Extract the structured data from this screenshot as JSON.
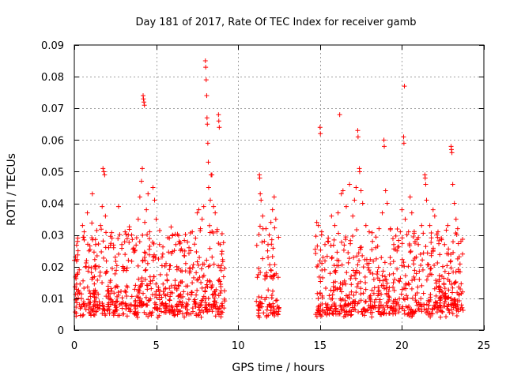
{
  "chart_data": {
    "type": "scatter",
    "title": "Day 181 of 2017, Rate Of TEC Index for receiver gamb",
    "xlabel": "GPS time / hours",
    "ylabel": "ROTI / TECUs",
    "xlim": [
      0,
      25
    ],
    "ylim": [
      0,
      0.09
    ],
    "xticks": [
      0,
      5,
      10,
      15,
      20,
      25
    ],
    "xtick_labels": [
      "0",
      "5",
      "10",
      "15",
      "20",
      "25"
    ],
    "yticks": [
      0,
      0.01,
      0.02,
      0.03,
      0.04,
      0.05,
      0.06,
      0.07,
      0.08,
      0.09
    ],
    "ytick_labels": [
      "0",
      "0.01",
      "0.02",
      "0.03",
      "0.04",
      "0.05",
      "0.06",
      "0.07",
      "0.08",
      "0.09"
    ],
    "grid": true,
    "marker": "+",
    "color": "#ff0000",
    "data_gaps_hours": [
      [
        9.2,
        11.1
      ],
      [
        12.5,
        14.7
      ],
      [
        23.8,
        25
      ]
    ],
    "series": [
      {
        "name": "ROTI",
        "points": [
          [
            0.0,
            0.022
          ],
          [
            0.2,
            0.028
          ],
          [
            0.3,
            0.019
          ],
          [
            0.5,
            0.033
          ],
          [
            0.6,
            0.031
          ],
          [
            0.8,
            0.037
          ],
          [
            0.9,
            0.025
          ],
          [
            1.1,
            0.043
          ],
          [
            1.3,
            0.027
          ],
          [
            1.5,
            0.02
          ],
          [
            1.6,
            0.033
          ],
          [
            1.7,
            0.039
          ],
          [
            1.75,
            0.051
          ],
          [
            1.8,
            0.05
          ],
          [
            1.85,
            0.049
          ],
          [
            1.9,
            0.036
          ],
          [
            2.1,
            0.026
          ],
          [
            2.3,
            0.029
          ],
          [
            2.5,
            0.023
          ],
          [
            2.7,
            0.039
          ],
          [
            2.9,
            0.027
          ],
          [
            3.1,
            0.031
          ],
          [
            3.3,
            0.022
          ],
          [
            3.5,
            0.03
          ],
          [
            3.7,
            0.025
          ],
          [
            3.9,
            0.035
          ],
          [
            4.0,
            0.042
          ],
          [
            4.1,
            0.047
          ],
          [
            4.15,
            0.051
          ],
          [
            4.2,
            0.074
          ],
          [
            4.22,
            0.073
          ],
          [
            4.25,
            0.072
          ],
          [
            4.28,
            0.071
          ],
          [
            4.3,
            0.034
          ],
          [
            4.4,
            0.038
          ],
          [
            4.5,
            0.043
          ],
          [
            4.6,
            0.031
          ],
          [
            4.8,
            0.045
          ],
          [
            4.9,
            0.041
          ],
          [
            5.0,
            0.035
          ],
          [
            5.2,
            0.027
          ],
          [
            5.4,
            0.024
          ],
          [
            5.6,
            0.021
          ],
          [
            5.8,
            0.029
          ],
          [
            6.0,
            0.03
          ],
          [
            6.2,
            0.027
          ],
          [
            6.4,
            0.028
          ],
          [
            6.6,
            0.025
          ],
          [
            6.8,
            0.021
          ],
          [
            7.0,
            0.026
          ],
          [
            7.2,
            0.031
          ],
          [
            7.4,
            0.029
          ],
          [
            7.5,
            0.037
          ],
          [
            7.6,
            0.038
          ],
          [
            7.7,
            0.032
          ],
          [
            7.8,
            0.035
          ],
          [
            7.9,
            0.039
          ],
          [
            8.0,
            0.085
          ],
          [
            8.02,
            0.083
          ],
          [
            8.05,
            0.079
          ],
          [
            8.08,
            0.074
          ],
          [
            8.1,
            0.067
          ],
          [
            8.12,
            0.065
          ],
          [
            8.15,
            0.059
          ],
          [
            8.18,
            0.053
          ],
          [
            8.2,
            0.045
          ],
          [
            8.3,
            0.041
          ],
          [
            8.35,
            0.049
          ],
          [
            8.4,
            0.049
          ],
          [
            8.5,
            0.039
          ],
          [
            8.6,
            0.037
          ],
          [
            8.7,
            0.031
          ],
          [
            8.8,
            0.068
          ],
          [
            8.82,
            0.066
          ],
          [
            8.85,
            0.064
          ],
          [
            8.9,
            0.027
          ],
          [
            9.0,
            0.024
          ],
          [
            11.3,
            0.049
          ],
          [
            11.32,
            0.048
          ],
          [
            11.35,
            0.043
          ],
          [
            11.4,
            0.041
          ],
          [
            11.5,
            0.036
          ],
          [
            11.6,
            0.028
          ],
          [
            11.7,
            0.032
          ],
          [
            11.8,
            0.025
          ],
          [
            11.9,
            0.03
          ],
          [
            12.0,
            0.034
          ],
          [
            12.1,
            0.038
          ],
          [
            12.2,
            0.042
          ],
          [
            12.3,
            0.035
          ],
          [
            14.8,
            0.034
          ],
          [
            14.9,
            0.033
          ],
          [
            15.0,
            0.064
          ],
          [
            15.02,
            0.062
          ],
          [
            15.1,
            0.031
          ],
          [
            15.3,
            0.027
          ],
          [
            15.5,
            0.029
          ],
          [
            15.7,
            0.036
          ],
          [
            15.9,
            0.033
          ],
          [
            16.1,
            0.037
          ],
          [
            16.2,
            0.068
          ],
          [
            16.3,
            0.043
          ],
          [
            16.4,
            0.044
          ],
          [
            16.6,
            0.039
          ],
          [
            16.8,
            0.046
          ],
          [
            17.0,
            0.036
          ],
          [
            17.1,
            0.041
          ],
          [
            17.2,
            0.045
          ],
          [
            17.3,
            0.063
          ],
          [
            17.32,
            0.061
          ],
          [
            17.4,
            0.051
          ],
          [
            17.42,
            0.05
          ],
          [
            17.5,
            0.044
          ],
          [
            17.6,
            0.04
          ],
          [
            17.8,
            0.033
          ],
          [
            18.0,
            0.031
          ],
          [
            18.2,
            0.028
          ],
          [
            18.4,
            0.026
          ],
          [
            18.6,
            0.032
          ],
          [
            18.8,
            0.037
          ],
          [
            18.9,
            0.06
          ],
          [
            18.92,
            0.058
          ],
          [
            19.0,
            0.044
          ],
          [
            19.1,
            0.04
          ],
          [
            19.3,
            0.032
          ],
          [
            19.5,
            0.027
          ],
          [
            19.7,
            0.025
          ],
          [
            19.9,
            0.031
          ],
          [
            20.0,
            0.038
          ],
          [
            20.1,
            0.061
          ],
          [
            20.12,
            0.059
          ],
          [
            20.15,
            0.077
          ],
          [
            20.2,
            0.035
          ],
          [
            20.4,
            0.031
          ],
          [
            20.5,
            0.042
          ],
          [
            20.6,
            0.037
          ],
          [
            20.8,
            0.028
          ],
          [
            21.0,
            0.027
          ],
          [
            21.2,
            0.033
          ],
          [
            21.4,
            0.049
          ],
          [
            21.42,
            0.048
          ],
          [
            21.45,
            0.046
          ],
          [
            21.5,
            0.041
          ],
          [
            21.7,
            0.033
          ],
          [
            21.9,
            0.038
          ],
          [
            22.0,
            0.036
          ],
          [
            22.2,
            0.031
          ],
          [
            22.4,
            0.029
          ],
          [
            22.6,
            0.027
          ],
          [
            22.8,
            0.033
          ],
          [
            23.0,
            0.058
          ],
          [
            23.02,
            0.057
          ],
          [
            23.05,
            0.056
          ],
          [
            23.1,
            0.046
          ],
          [
            23.2,
            0.04
          ],
          [
            23.3,
            0.035
          ],
          [
            23.4,
            0.032
          ],
          [
            23.6,
            0.028
          ],
          [
            23.7,
            0.024
          ]
        ]
      }
    ]
  }
}
